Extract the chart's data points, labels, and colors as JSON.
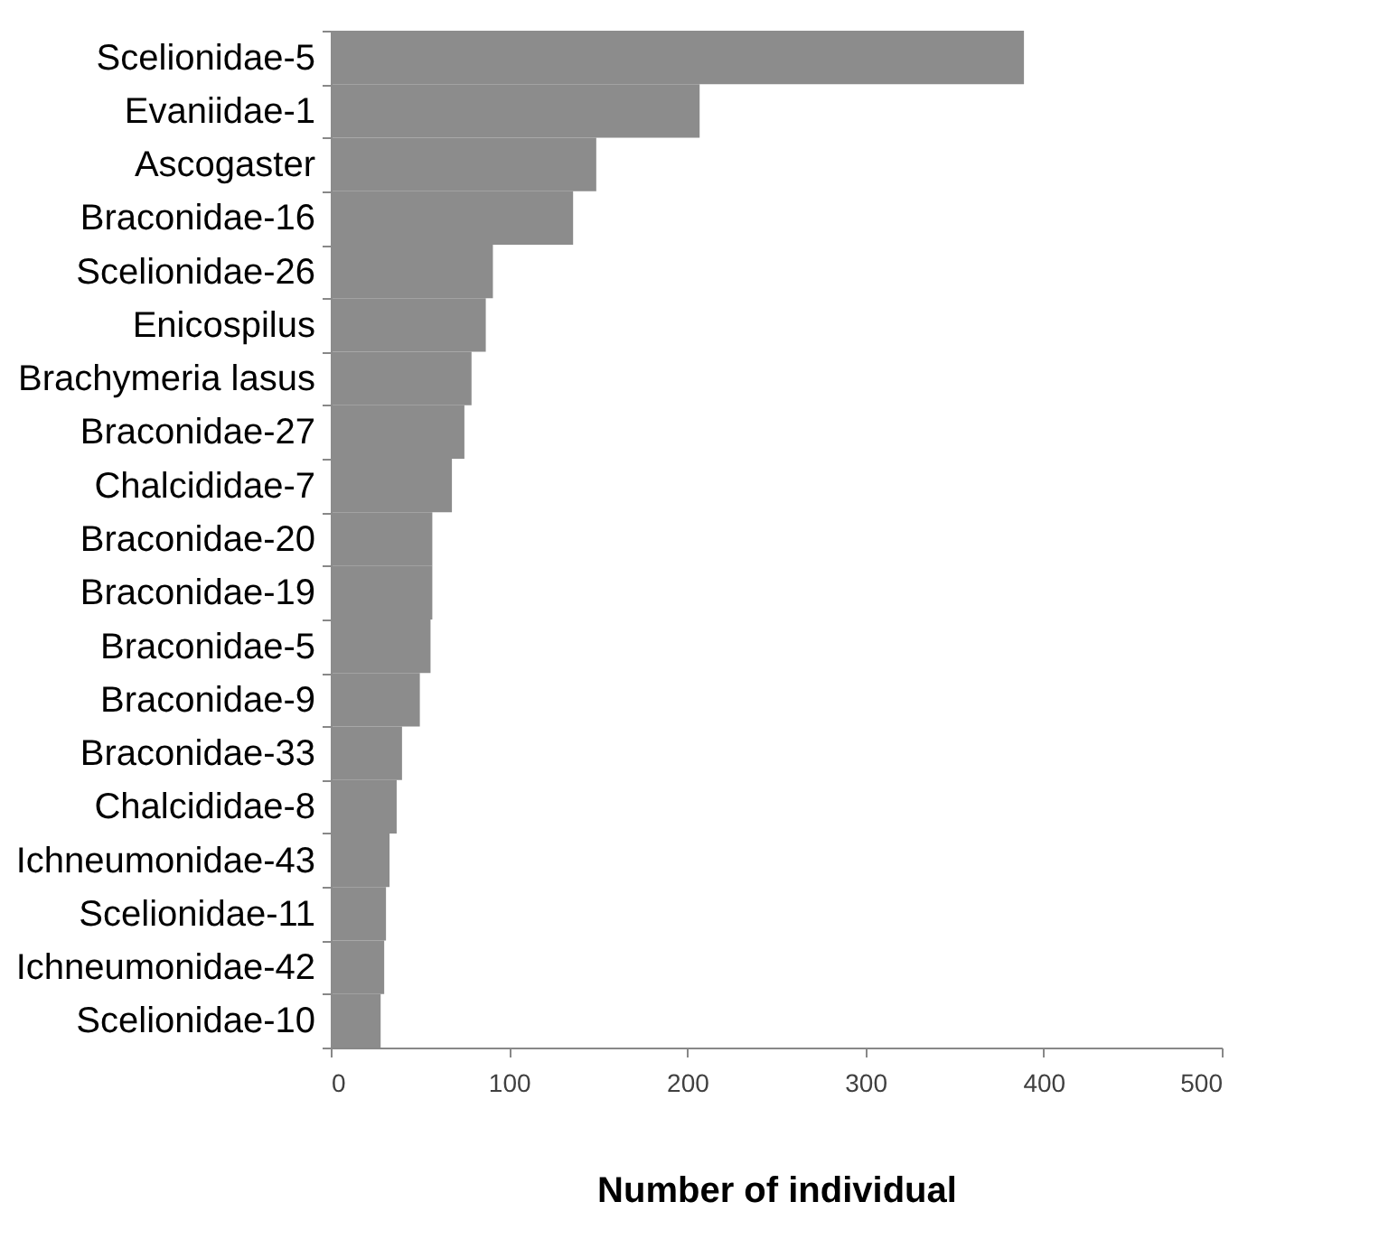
{
  "chart_data": {
    "type": "bar",
    "orientation": "horizontal",
    "xlabel": "Number of individual",
    "categories": [
      "Scelionidae-5",
      "Evaniidae-1",
      "Ascogaster",
      "Braconidae-16",
      "Scelionidae-26",
      "Enicospilus",
      "Brachymeria lasus",
      "Braconidae-27",
      "Chalcididae-7",
      "Braconidae-20",
      "Braconidae-19",
      "Braconidae-5",
      "Braconidae-9",
      "Braconidae-33",
      "Chalcididae-8",
      "Ichneumonidae-43",
      "Scelionidae-11",
      "Ichneumonidae-42",
      "Scelionidae-10"
    ],
    "values": [
      389,
      207,
      149,
      136,
      91,
      87,
      79,
      75,
      68,
      57,
      57,
      56,
      50,
      40,
      37,
      33,
      31,
      30,
      28
    ],
    "color": "#8c8c8c",
    "xlim": [
      0,
      500
    ],
    "xticks": [
      0,
      100,
      200,
      300,
      400,
      500
    ],
    "grid": false
  }
}
